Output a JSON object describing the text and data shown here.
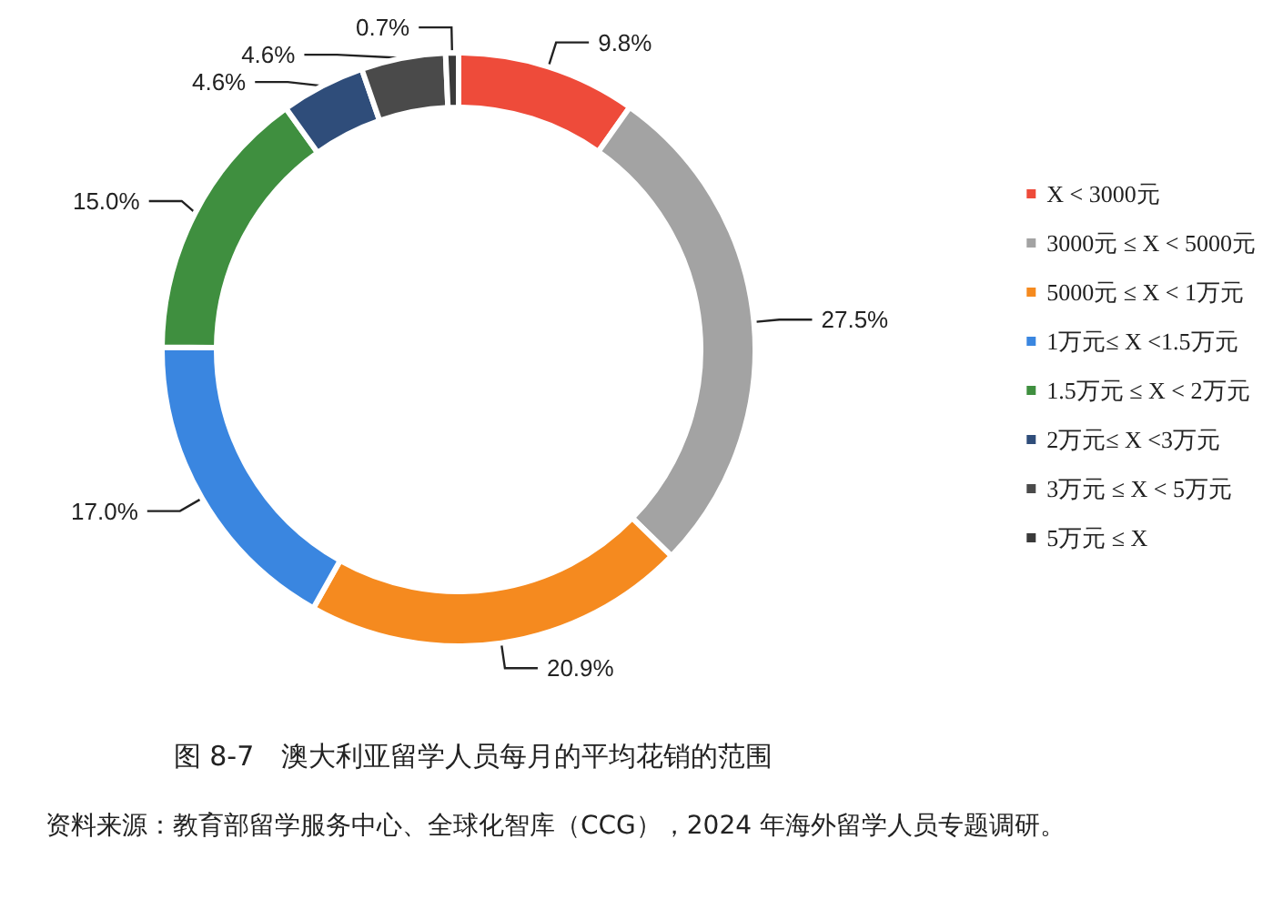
{
  "chart_data": {
    "type": "donut",
    "title": "图 8-7　澳大利亚留学人员每月的平均花销的范围",
    "categories": [
      "X < 3000元",
      "3000元 ≤ X < 5000元",
      "5000元 ≤ X < 1万元",
      "1万元≤ X <1.5万元",
      "1.5万元 ≤ X < 2万元",
      "2万元≤ X <3万元",
      "3万元 ≤ X < 5万元",
      "5万元 ≤ X"
    ],
    "values": [
      9.8,
      27.5,
      20.9,
      17.0,
      15.0,
      4.6,
      4.6,
      0.7
    ],
    "colors": [
      "#ee4b3a",
      "#a3a3a3",
      "#f58a1f",
      "#3a86e0",
      "#3f8f3f",
      "#2f4d7a",
      "#4a4a4a",
      "#3a3a3a"
    ],
    "value_labels": [
      "9.8%",
      "27.5%",
      "20.9%",
      "17.0%",
      "15.0%",
      "4.6%",
      "4.6%",
      "0.7%"
    ],
    "legend": "right",
    "annotations": [
      "资料来源：教育部留学服务中心、全球化智库（CCG），2024 年海外留学人员专题调研。"
    ]
  }
}
